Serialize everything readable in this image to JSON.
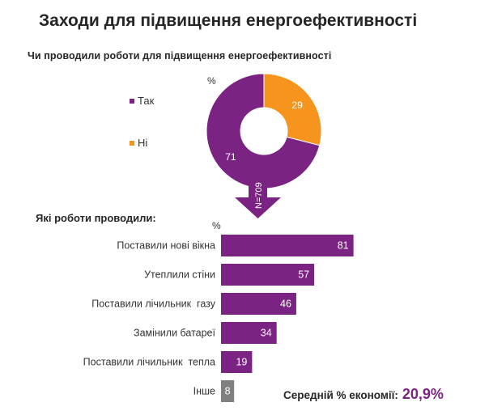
{
  "title": "Заходи для підвищення енергоефективності",
  "chart_data": [
    {
      "type": "pie",
      "title": "Чи проводили  роботи для підвищення  енергоефективності",
      "unit": "%",
      "sample_label": "N=709",
      "slices": [
        {
          "label": "Так",
          "value": 71,
          "color": "#7B2382"
        },
        {
          "label": "Ні",
          "value": 29,
          "color": "#F7941D"
        }
      ]
    },
    {
      "type": "bar",
      "orientation": "horizontal",
      "title": "Які  роботи проводили:",
      "unit": "%",
      "categories": [
        "Поставили нові вікна",
        "Утеплили стіни",
        "Поставили лічильник  газу",
        "Замінили батареї",
        "Поставили лічильник  тепла",
        "Інше"
      ],
      "values": [
        81,
        57,
        46,
        34,
        19,
        8
      ],
      "colors": [
        "#7B2382",
        "#7B2382",
        "#7B2382",
        "#7B2382",
        "#7B2382",
        "#808080"
      ]
    }
  ],
  "savings": {
    "label": "Середній  % економії:",
    "value": "20,9%"
  }
}
